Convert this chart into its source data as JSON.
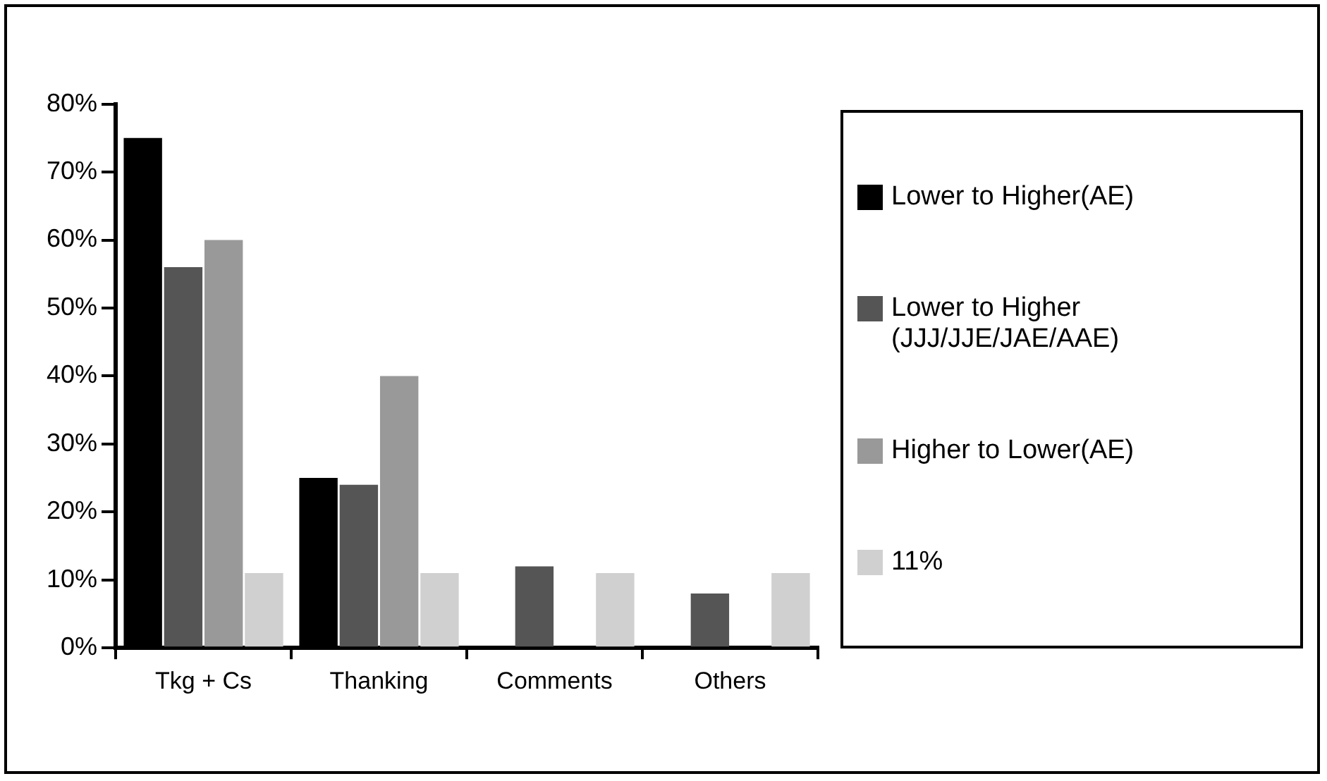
{
  "chart_data": {
    "type": "bar",
    "categories": [
      "Tkg + Cs",
      "Thanking",
      "Comments",
      "Others"
    ],
    "series": [
      {
        "name": "Lower to Higher(AE)",
        "color": "#000000",
        "values": [
          75,
          25,
          0,
          0
        ]
      },
      {
        "name": "Lower to Higher (JJJ/JJE/JAE/AAE)",
        "color": "#555555",
        "values": [
          56,
          24,
          12,
          8
        ]
      },
      {
        "name": "Higher to Lower(AE)",
        "color": "#999999",
        "values": [
          60,
          40,
          0,
          0
        ]
      },
      {
        "name": "11%",
        "color": "#d0d0d0",
        "values": [
          11,
          11,
          11,
          11
        ]
      }
    ],
    "ylim": [
      0,
      80
    ],
    "yticks": [
      {
        "value": 0,
        "label": "0%"
      },
      {
        "value": 10,
        "label": "10%"
      },
      {
        "value": 20,
        "label": "20%"
      },
      {
        "value": 30,
        "label": "30%"
      },
      {
        "value": 40,
        "label": "40%"
      },
      {
        "value": 50,
        "label": "50%"
      },
      {
        "value": 60,
        "label": "60%"
      },
      {
        "value": 70,
        "label": "70%"
      },
      {
        "value": 80,
        "label": "80%"
      }
    ],
    "grid": false,
    "legend": "right"
  }
}
